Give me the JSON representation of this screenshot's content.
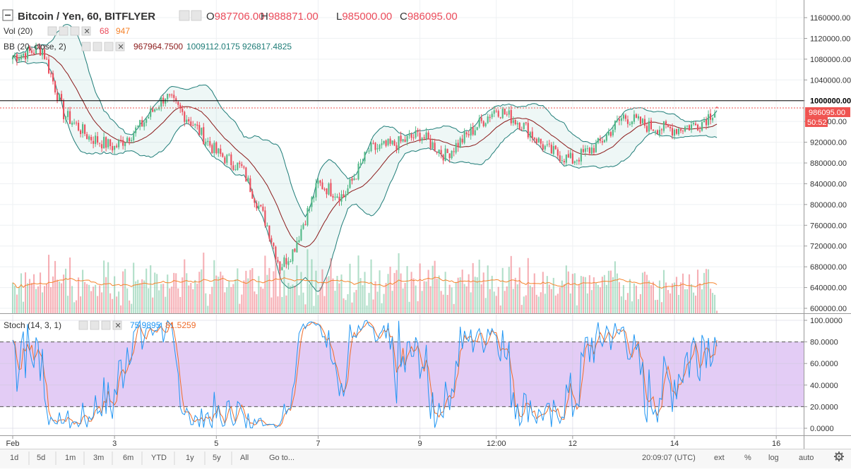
{
  "header": {
    "symbol": "Bitcoin / Yen, 60, BITFLYER",
    "open_label": "O",
    "open": "987706.00",
    "high_label": "H",
    "high": "988871.00",
    "low_label": "L",
    "low": "985000.00",
    "close_label": "C",
    "close": "986095.00"
  },
  "vol_legend": {
    "label": "Vol (20)",
    "value": "68",
    "ma": "947"
  },
  "bb_legend": {
    "label": "BB (20, close, 2)",
    "basis": "967964.7500",
    "upper": "1009112.0175",
    "lower": "926817.4825"
  },
  "stoch_legend": {
    "label": "Stoch (14, 3, 1)",
    "k": "75.9895",
    "d": "81.5259"
  },
  "price_axis": {
    "ticks": [
      "1160000.00",
      "1120000.00",
      "1080000.00",
      "1040000.00",
      "1000000.00",
      "960000.00",
      "920000.00",
      "880000.00",
      "840000.00",
      "800000.00",
      "760000.00",
      "720000.00",
      "680000.00",
      "640000.00",
      "600000.00"
    ],
    "marked_level": "1000000.00",
    "last_price": "986095.00",
    "countdown": "50:52"
  },
  "stoch_axis": {
    "ticks": [
      "100.0000",
      "80.0000",
      "60.0000",
      "40.0000",
      "20.0000",
      "0.0000"
    ]
  },
  "time_axis": {
    "labels": [
      "Feb",
      "3",
      "5",
      "7",
      "9",
      "12:00",
      "12",
      "14",
      "16"
    ]
  },
  "bottom_bar": {
    "ranges": [
      "1d",
      "5d",
      "1m",
      "3m",
      "6m",
      "YTD",
      "1y",
      "5y",
      "All"
    ],
    "goto": "Go to...",
    "clock": "20:09:07 (UTC)",
    "options": [
      "ext",
      "%",
      "log",
      "auto"
    ],
    "settings_icon": "gear-icon"
  },
  "colors": {
    "up": "#53b987",
    "down": "#eb4d5c",
    "bb_band": "#1f7d78",
    "bb_basis": "#8b1a1a",
    "vol_ma": "#f5832b",
    "stoch_k": "#2196f3",
    "stoch_d": "#ef6c2a",
    "stoch_fill": "#e3ccf5",
    "price_tag": "#ef5350"
  },
  "chart_data": [
    {
      "type": "candlestick",
      "title": "Bitcoin / Yen, 60, BITFLYER",
      "ylim": [
        590000,
        1185000
      ],
      "x_start": "2018-02-01",
      "x_end": "2018-02-14 20:09",
      "xlim": [
        "2018-02-01",
        "2018-02-16 06:00"
      ],
      "x_tick_labels": [
        "Feb",
        "3",
        "5",
        "7",
        "9",
        "12:00",
        "12",
        "14",
        "16"
      ],
      "series_close_waypoints": {
        "x": [
          "Feb 1 00:00",
          "Feb 1 14:00",
          "Feb 2 00:00",
          "Feb 2 12:00",
          "Feb 3 00:00",
          "Feb 3 12:00",
          "Feb 4 00:00",
          "Feb 4 12:00",
          "Feb 5 00:00",
          "Feb 5 12:00",
          "Feb 6 00:00",
          "Feb 6 06:00",
          "Feb 6 12:00",
          "Feb 7 00:00",
          "Feb 7 12:00",
          "Feb 8 00:00",
          "Feb 8 12:00",
          "Feb 9 00:00",
          "Feb 9 12:00",
          "Feb 10 00:00",
          "Feb 10 12:00",
          "Feb 11 00:00",
          "Feb 11 12:00",
          "Feb 12 00:00",
          "Feb 12 12:00",
          "Feb 13 00:00",
          "Feb 13 12:00",
          "Feb 14 00:00",
          "Feb 14 12:00",
          "Feb 14 20:00"
        ],
        "y": [
          1085000,
          1100000,
          975000,
          930000,
          910000,
          950000,
          1010000,
          960000,
          900000,
          870000,
          760000,
          680000,
          710000,
          840000,
          815000,
          905000,
          915000,
          935000,
          895000,
          940000,
          985000,
          955000,
          905000,
          885000,
          915000,
          970000,
          950000,
          945000,
          955000,
          986095
        ]
      },
      "last": {
        "open": 987706,
        "high": 988871,
        "low": 985000,
        "close": 986095
      },
      "horizontal_line": 1000000,
      "bollinger": {
        "length": 20,
        "mult": 2,
        "basis": 967964.75,
        "upper": 1009112.0175,
        "lower": 926817.4825
      }
    },
    {
      "type": "bar",
      "name": "Vol (20)",
      "last_volume": 68,
      "volume_ma": 947
    },
    {
      "type": "line",
      "name": "Stoch (14, 3, 1)",
      "ylim": [
        -5,
        104
      ],
      "bands": [
        20,
        80
      ],
      "y_ticks": [
        100,
        80,
        60,
        40,
        20,
        0
      ],
      "last_k": 75.9895,
      "last_d": 81.5259
    }
  ]
}
